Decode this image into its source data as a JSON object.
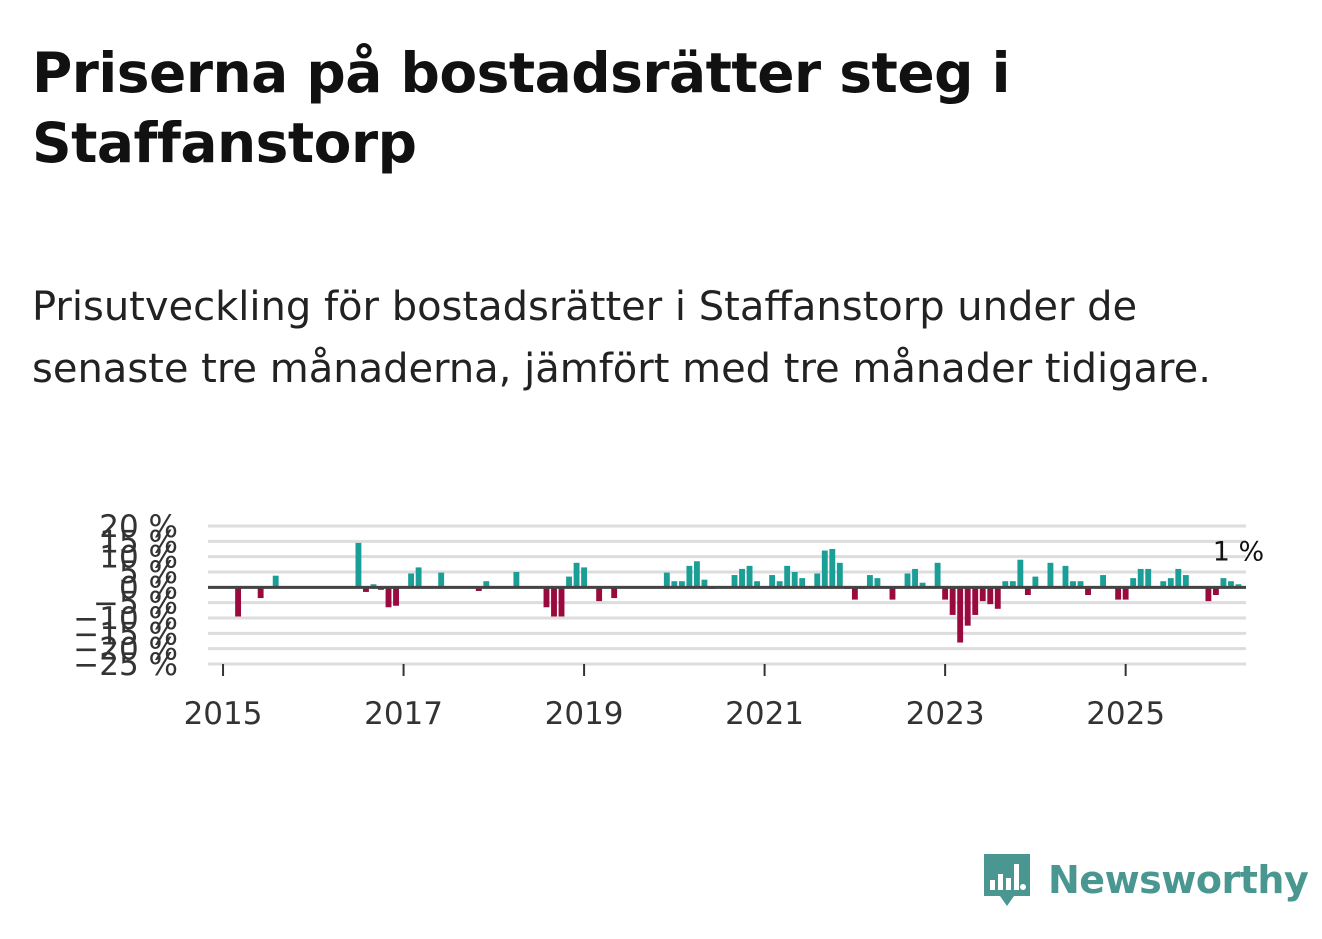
{
  "header": {
    "title": "Priserna på bostadsrätter steg i Staffanstorp",
    "subtitle": "Prisutveckling för bostadsrätter i Staffanstorp under de senaste tre månaderna, jämfört med tre månader tidigare."
  },
  "colors": {
    "positive": "#1a9e96",
    "negative": "#9b0a3e",
    "grid": "#dddddd",
    "zero_line": "#444444"
  },
  "chart_data": {
    "type": "bar",
    "title": "",
    "xlabel": "",
    "ylabel": "",
    "ylim": [
      -25,
      20
    ],
    "yticks": [
      {
        "value": 20,
        "label": "20 %"
      },
      {
        "value": 15,
        "label": "15 %"
      },
      {
        "value": 10,
        "label": "10 %"
      },
      {
        "value": 5,
        "label": "5 %"
      },
      {
        "value": 0,
        "label": "0 %"
      },
      {
        "value": -5,
        "label": "−5 %"
      },
      {
        "value": -10,
        "label": "−10 %"
      },
      {
        "value": -15,
        "label": "−15 %"
      },
      {
        "value": -20,
        "label": "−20 %"
      },
      {
        "value": -25,
        "label": "−25 %"
      }
    ],
    "xlim": [
      "2014-11",
      "2026-05"
    ],
    "xticks": [
      {
        "value": "2015-01",
        "label": "2015"
      },
      {
        "value": "2017-01",
        "label": "2017"
      },
      {
        "value": "2019-01",
        "label": "2019"
      },
      {
        "value": "2021-01",
        "label": "2021"
      },
      {
        "value": "2023-01",
        "label": "2023"
      },
      {
        "value": "2025-01",
        "label": "2025"
      }
    ],
    "start": "2015-03",
    "values": [
      -9.5,
      null,
      null,
      -3.5,
      null,
      3.8,
      null,
      null,
      null,
      null,
      null,
      null,
      null,
      null,
      null,
      null,
      14.5,
      -1.5,
      1.0,
      -0.8,
      -6.5,
      -6.0,
      null,
      4.5,
      6.5,
      null,
      null,
      4.8,
      null,
      null,
      null,
      null,
      -1.2,
      2.0,
      null,
      null,
      null,
      5.0,
      null,
      null,
      null,
      -6.5,
      -9.5,
      -9.5,
      3.5,
      8.0,
      6.5,
      null,
      -4.5,
      null,
      -3.5,
      null,
      null,
      null,
      null,
      null,
      null,
      4.8,
      2.0,
      2.0,
      7.0,
      8.5,
      2.5,
      -0.5,
      null,
      null,
      4.0,
      6.0,
      7.0,
      2.0,
      null,
      4.0,
      2.0,
      7.0,
      5.0,
      3.0,
      null,
      4.5,
      12.0,
      12.5,
      8.0,
      -0.5,
      -4.0,
      -0.5,
      4.0,
      3.0,
      null,
      -4.0,
      null,
      4.5,
      6.0,
      1.5,
      null,
      8.0,
      -4.0,
      -9.0,
      -18.0,
      -12.5,
      -9.0,
      -4.5,
      -5.5,
      -7.0,
      2.0,
      2.0,
      9.0,
      -2.5,
      3.5,
      null,
      8.0,
      null,
      7.0,
      2.0,
      2.0,
      -2.5,
      null,
      4.0,
      null,
      -4.0,
      -4.0,
      3.0,
      6.0,
      6.0,
      null,
      2.0,
      3.0,
      6.0,
      4.0,
      null,
      null,
      -4.5,
      -2.5,
      3.0,
      2.0,
      1.0
    ],
    "end_label": "1 %"
  },
  "logo": {
    "text": "Newsworthy",
    "icon": "bar-chart-speech-bubble-icon"
  }
}
